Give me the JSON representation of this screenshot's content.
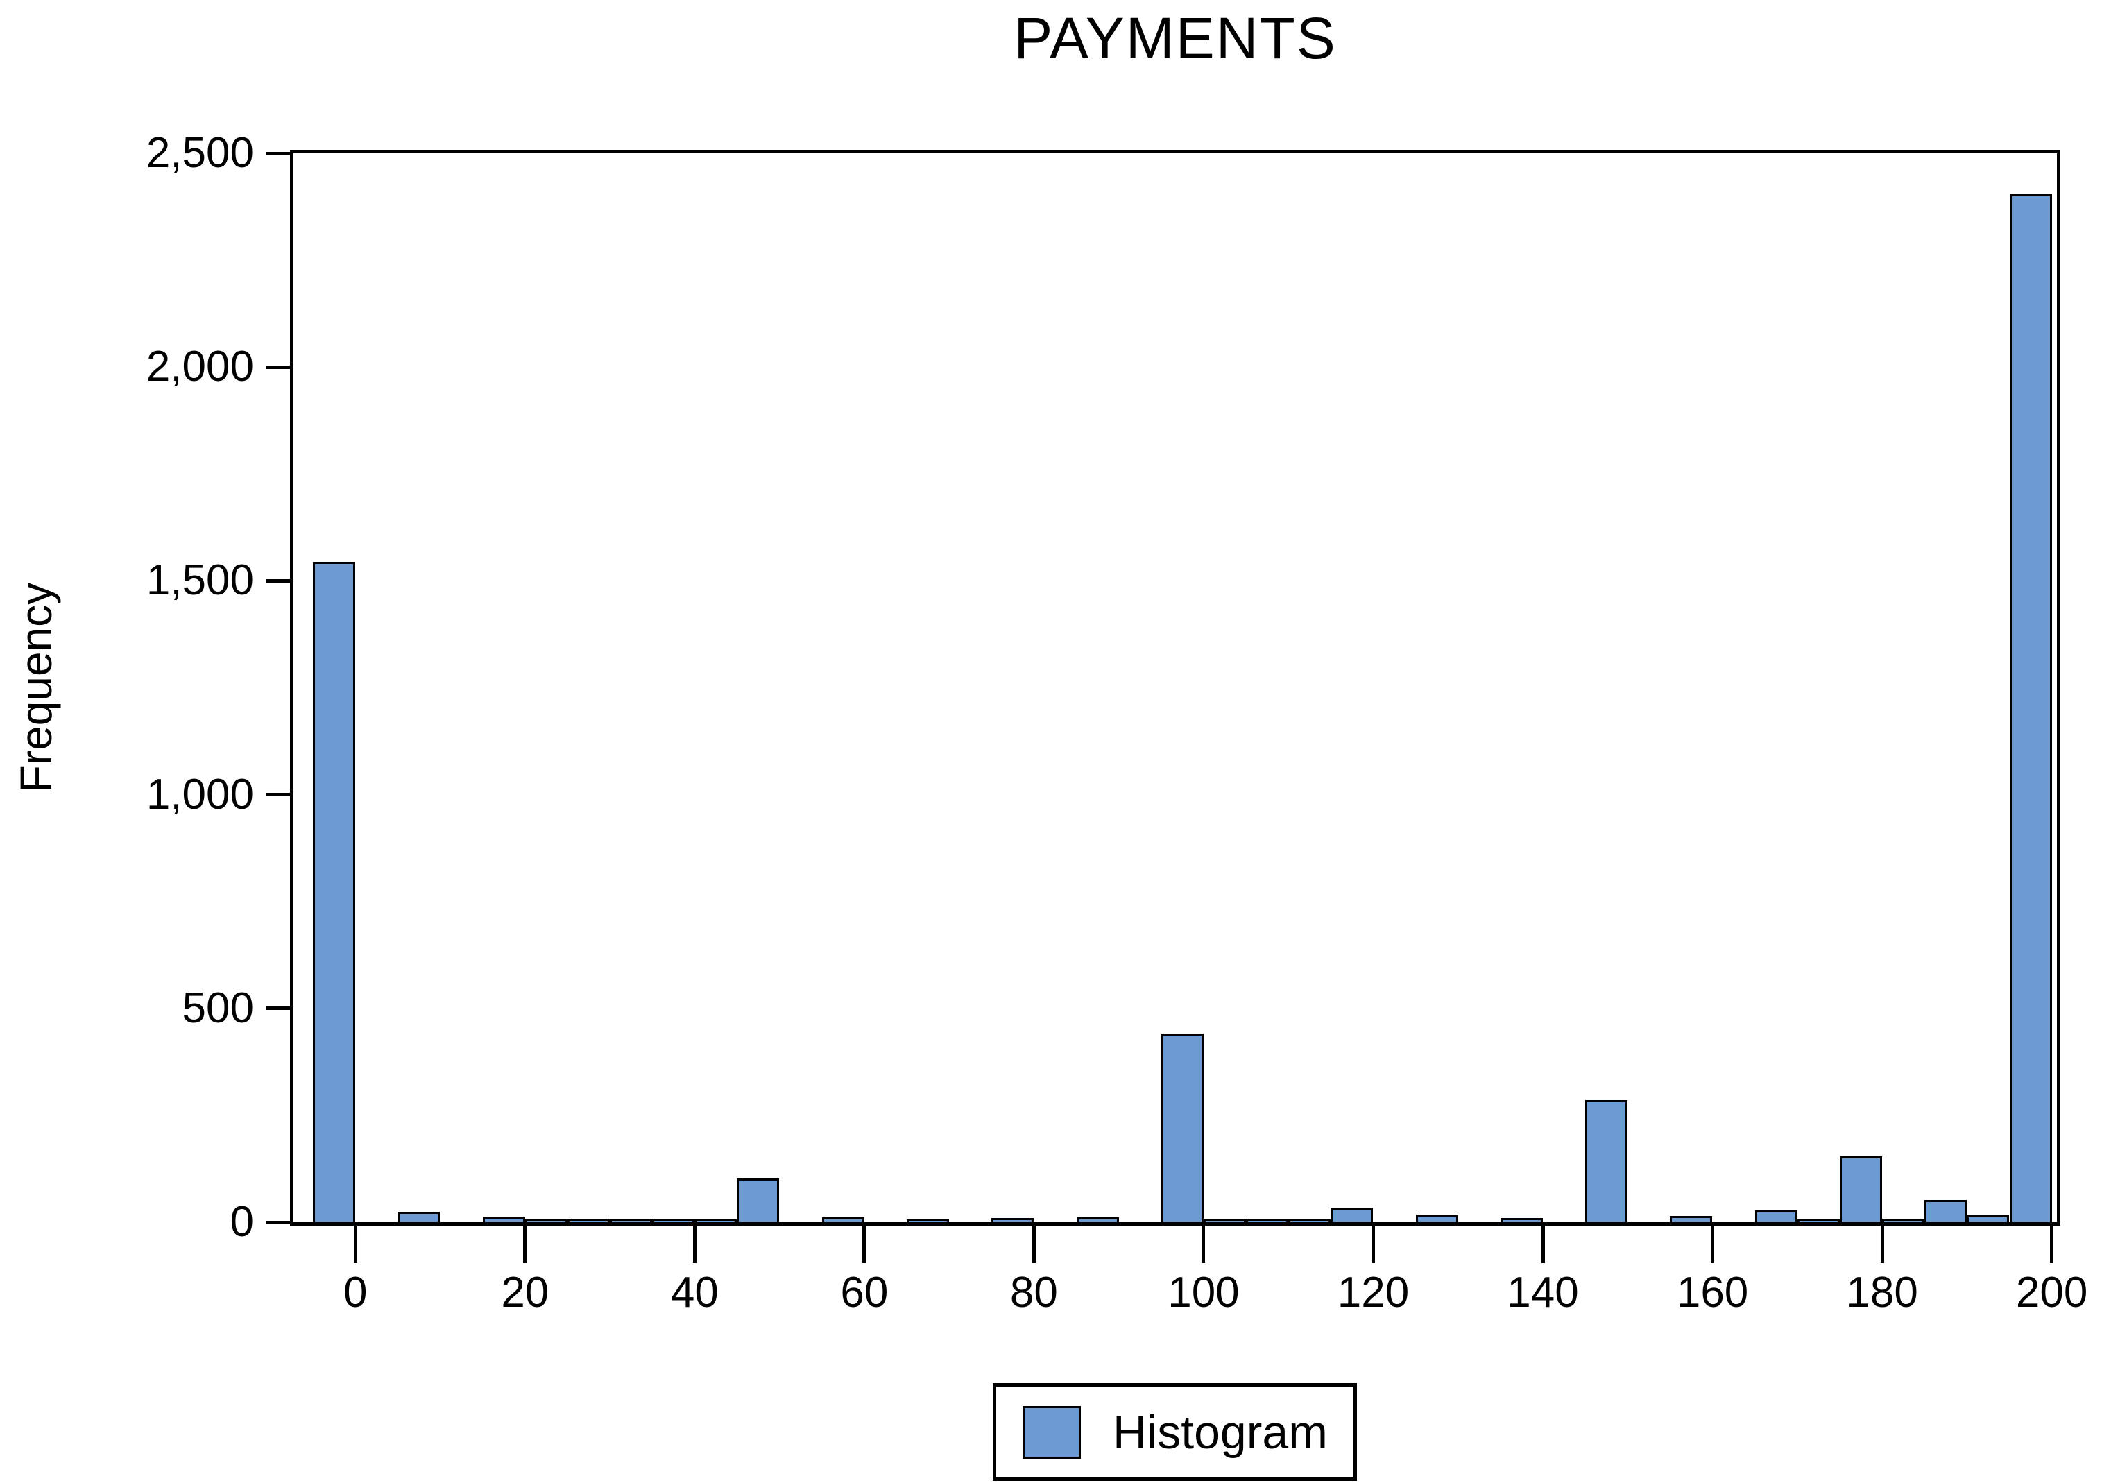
{
  "title": "PAYMENTS",
  "y_axis": {
    "label": "Frequency",
    "tick_labels": [
      "0",
      "500",
      "1,000",
      "1,500",
      "2,000",
      "2,500"
    ],
    "tick_values": [
      0,
      500,
      1000,
      1500,
      2000,
      2500
    ]
  },
  "x_axis": {
    "tick_labels": [
      "0",
      "20",
      "40",
      "60",
      "80",
      "100",
      "120",
      "140",
      "160",
      "180",
      "200"
    ],
    "tick_values": [
      0,
      20,
      40,
      60,
      80,
      100,
      120,
      140,
      160,
      180,
      200
    ]
  },
  "legend": {
    "label": "Histogram",
    "position": "bottom-center"
  },
  "colors": {
    "bar_fill": "#6B9BD2",
    "bar_outline": "#000000",
    "axis": "#000000",
    "text": "#000000",
    "background": "#FFFFFF"
  },
  "chart_data": {
    "type": "bar",
    "subtype": "histogram",
    "title": "PAYMENTS",
    "xlabel": "",
    "ylabel": "Frequency",
    "xlim": [
      -7.3,
      200.6
    ],
    "ylim": [
      0,
      2500
    ],
    "bin_width": 5,
    "grid": false,
    "legend_position": "bottom-center",
    "series": [
      {
        "name": "Histogram",
        "bins": [
          {
            "center": -2.5,
            "count": 1540
          },
          {
            "center": 7.5,
            "count": 20
          },
          {
            "center": 17.5,
            "count": 8
          },
          {
            "center": 22.5,
            "count": 3
          },
          {
            "center": 27.5,
            "count": 2
          },
          {
            "center": 32.5,
            "count": 3
          },
          {
            "center": 37.5,
            "count": 2
          },
          {
            "center": 42.5,
            "count": 2
          },
          {
            "center": 47.5,
            "count": 97
          },
          {
            "center": 57.5,
            "count": 6
          },
          {
            "center": 67.5,
            "count": 2
          },
          {
            "center": 77.5,
            "count": 5
          },
          {
            "center": 87.5,
            "count": 6
          },
          {
            "center": 97.5,
            "count": 437
          },
          {
            "center": 102.5,
            "count": 4
          },
          {
            "center": 107.5,
            "count": 2
          },
          {
            "center": 112.5,
            "count": 2
          },
          {
            "center": 117.5,
            "count": 30
          },
          {
            "center": 127.5,
            "count": 13
          },
          {
            "center": 137.5,
            "count": 5
          },
          {
            "center": 147.5,
            "count": 280
          },
          {
            "center": 157.5,
            "count": 10
          },
          {
            "center": 167.5,
            "count": 22
          },
          {
            "center": 172.5,
            "count": 2
          },
          {
            "center": 177.5,
            "count": 150
          },
          {
            "center": 182.5,
            "count": 4
          },
          {
            "center": 187.5,
            "count": 47
          },
          {
            "center": 192.5,
            "count": 12
          },
          {
            "center": 197.5,
            "count": 2400
          }
        ]
      }
    ]
  }
}
